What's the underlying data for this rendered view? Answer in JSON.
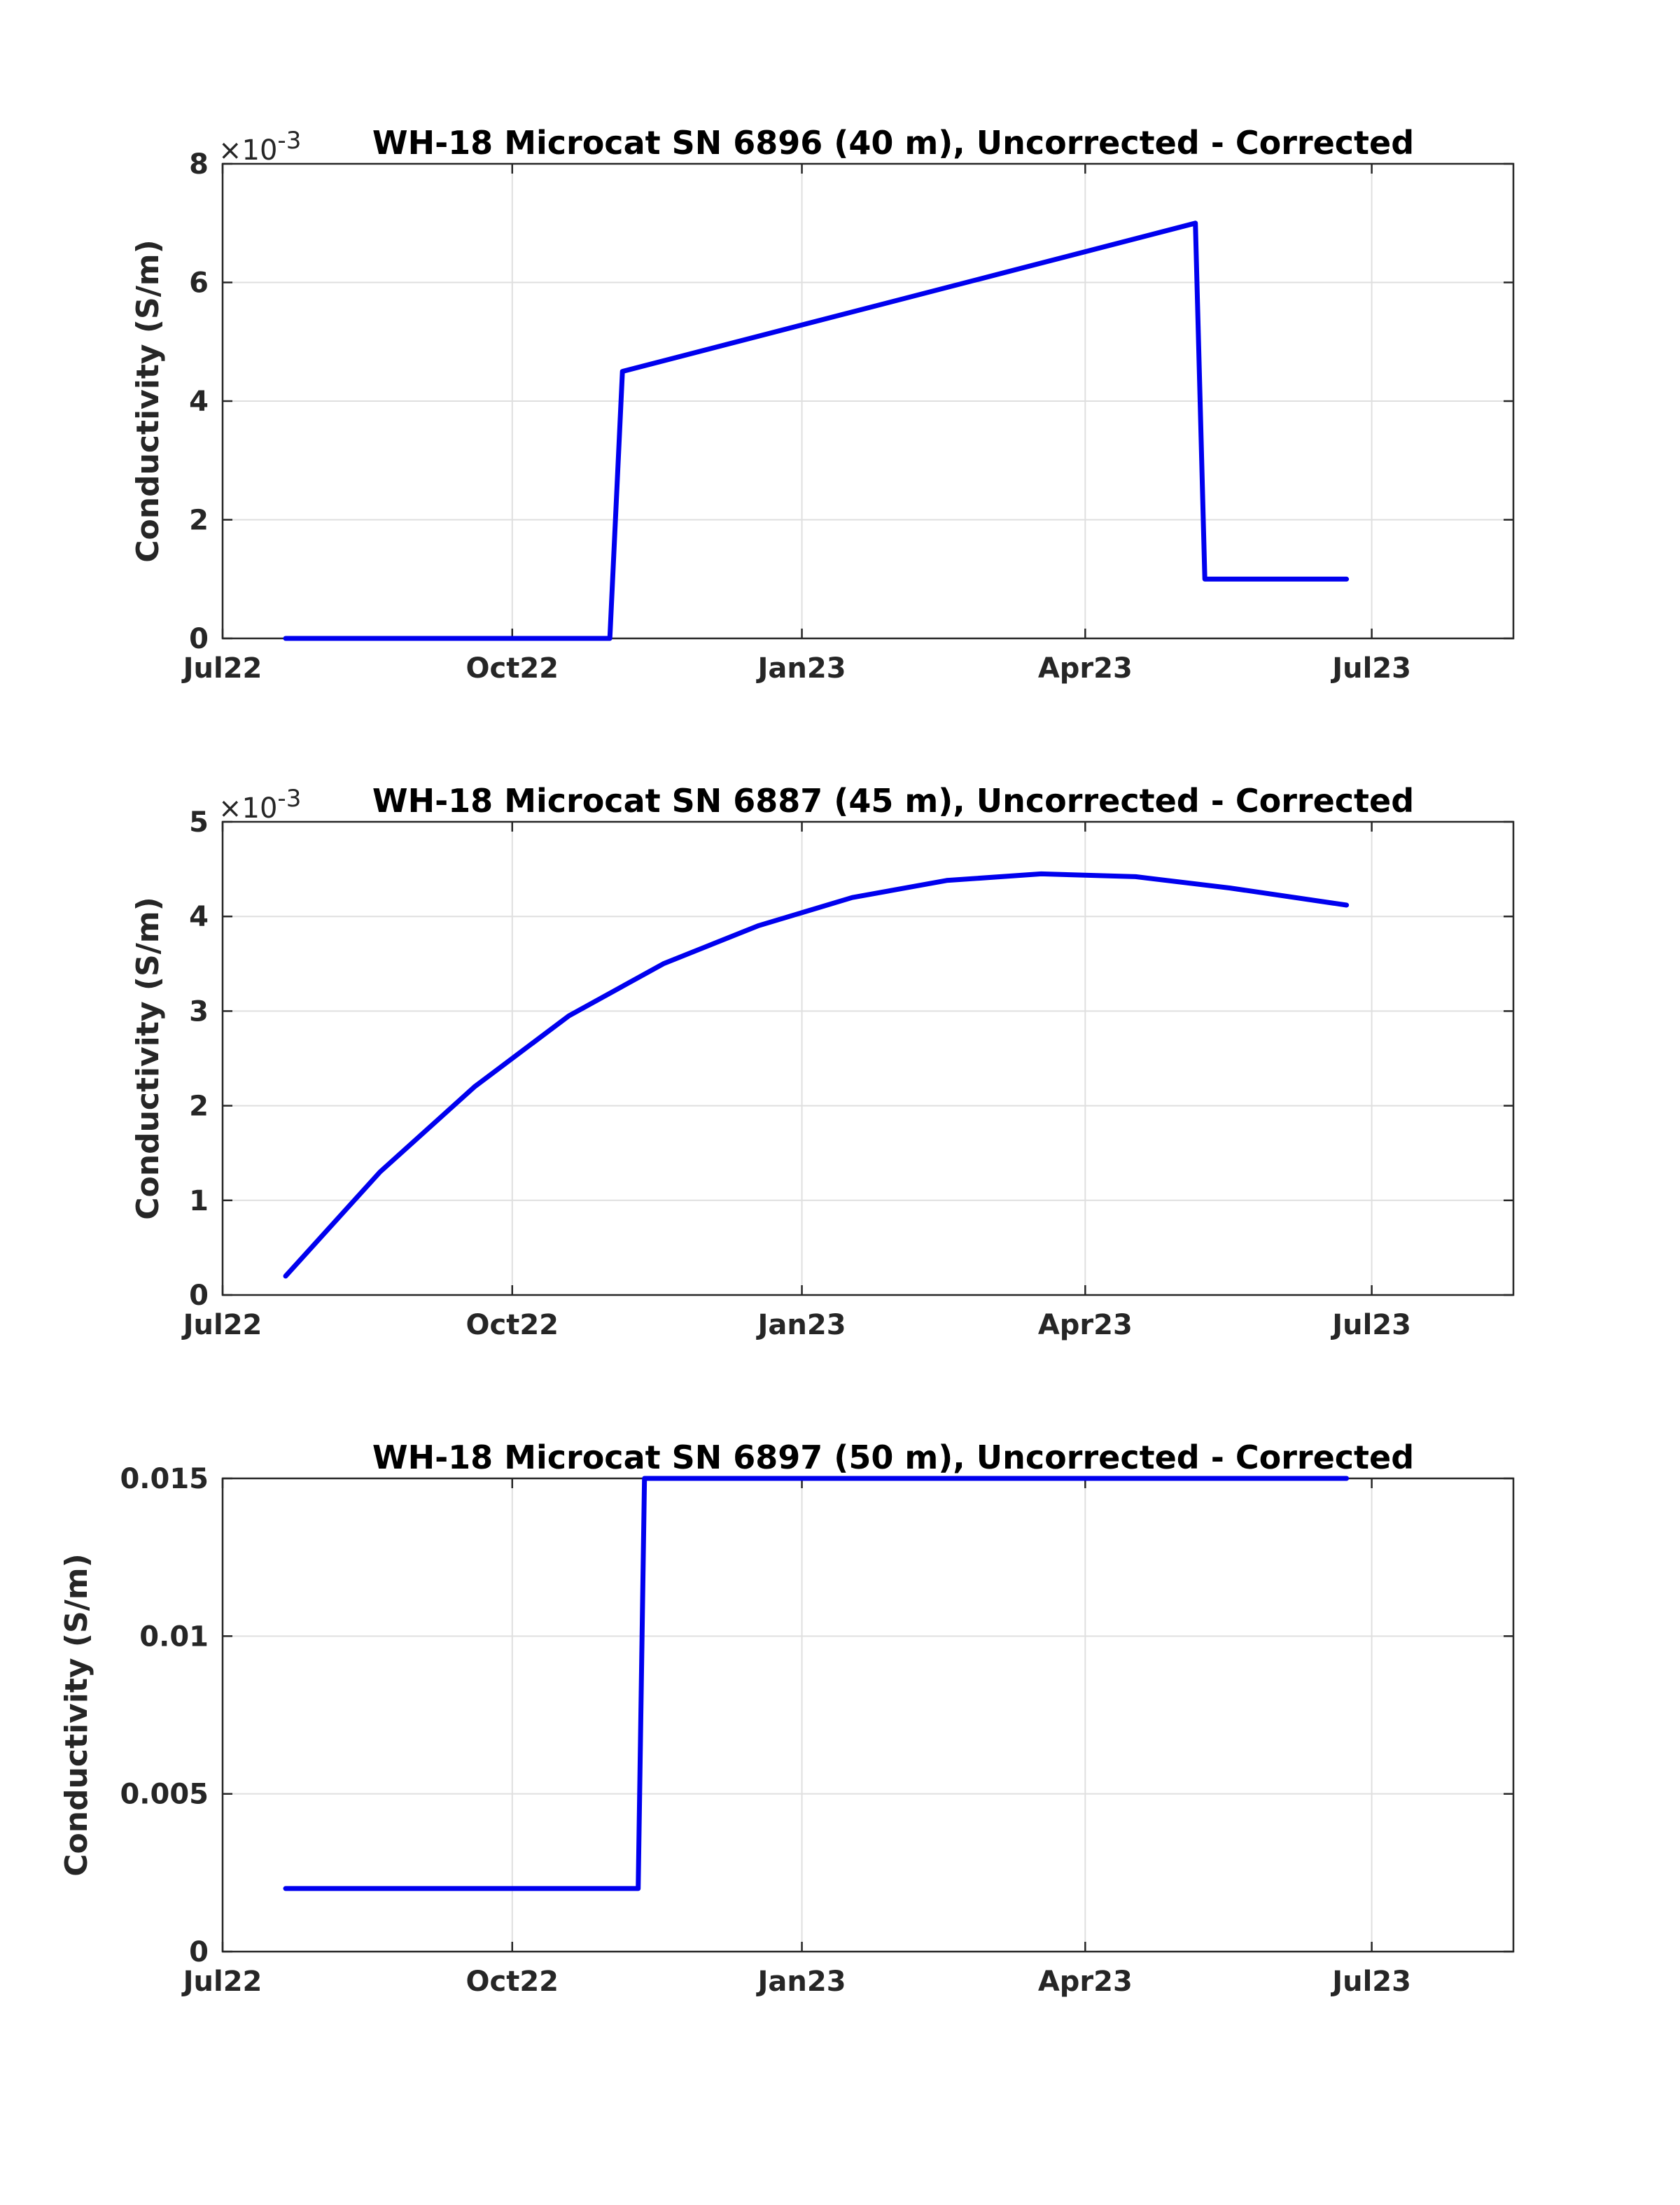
{
  "chart_data": [
    {
      "type": "line",
      "title": "WH-18 Microcat SN 6896 (40 m), Uncorrected - Corrected",
      "xlabel": "",
      "ylabel": "Conductivity (S/m)",
      "y_multiplier": "×10",
      "y_exponent": "-3",
      "xlim": [
        "2022-07-01",
        "2023-08-15"
      ],
      "ylim": [
        0,
        8
      ],
      "xticks": [
        "Jul22",
        "Oct22",
        "Jan23",
        "Apr23",
        "Jul23"
      ],
      "yticks": [
        "0",
        "2",
        "4",
        "6",
        "8"
      ],
      "grid": true,
      "color": "#0000ee",
      "series": [
        {
          "x": [
            "2022-07-21",
            "2022-11-01",
            "2022-11-05",
            "2023-05-06",
            "2023-05-09",
            "2023-06-23"
          ],
          "y": [
            0,
            0,
            4.5,
            7.0,
            1.0,
            1.0
          ]
        }
      ]
    },
    {
      "type": "line",
      "title": "WH-18 Microcat SN 6887 (45 m), Uncorrected - Corrected",
      "xlabel": "",
      "ylabel": "Conductivity (S/m)",
      "y_multiplier": "×10",
      "y_exponent": "-3",
      "xlim": [
        "2022-07-01",
        "2023-08-15"
      ],
      "ylim": [
        0,
        5
      ],
      "xticks": [
        "Jul22",
        "Oct22",
        "Jan23",
        "Apr23",
        "Jul23"
      ],
      "yticks": [
        "0",
        "1",
        "2",
        "3",
        "4",
        "5"
      ],
      "grid": true,
      "color": "#0000ee",
      "series": [
        {
          "x": [
            "2022-07-21",
            "2022-08-20",
            "2022-09-19",
            "2022-10-19",
            "2022-11-18",
            "2022-12-18",
            "2023-01-17",
            "2023-02-16",
            "2023-03-18",
            "2023-04-17",
            "2023-05-17",
            "2023-06-23"
          ],
          "y": [
            0.2,
            1.3,
            2.2,
            2.95,
            3.5,
            3.9,
            4.2,
            4.38,
            4.45,
            4.42,
            4.3,
            4.12
          ]
        }
      ]
    },
    {
      "type": "line",
      "title": "WH-18 Microcat SN 6897 (50 m), Uncorrected - Corrected",
      "xlabel": "",
      "ylabel": "Conductivity (S/m)",
      "xlim": [
        "2022-07-01",
        "2023-08-15"
      ],
      "ylim": [
        0,
        0.015
      ],
      "xticks": [
        "Jul22",
        "Oct22",
        "Jan23",
        "Apr23",
        "Jul23"
      ],
      "yticks": [
        "0",
        "0.005",
        "0.01",
        "0.015"
      ],
      "grid": true,
      "color": "#0000ee",
      "series": [
        {
          "x": [
            "2022-07-21",
            "2022-11-10",
            "2022-11-12",
            "2023-06-23"
          ],
          "y": [
            0.002,
            0.002,
            0.015,
            0.015
          ]
        }
      ]
    }
  ]
}
